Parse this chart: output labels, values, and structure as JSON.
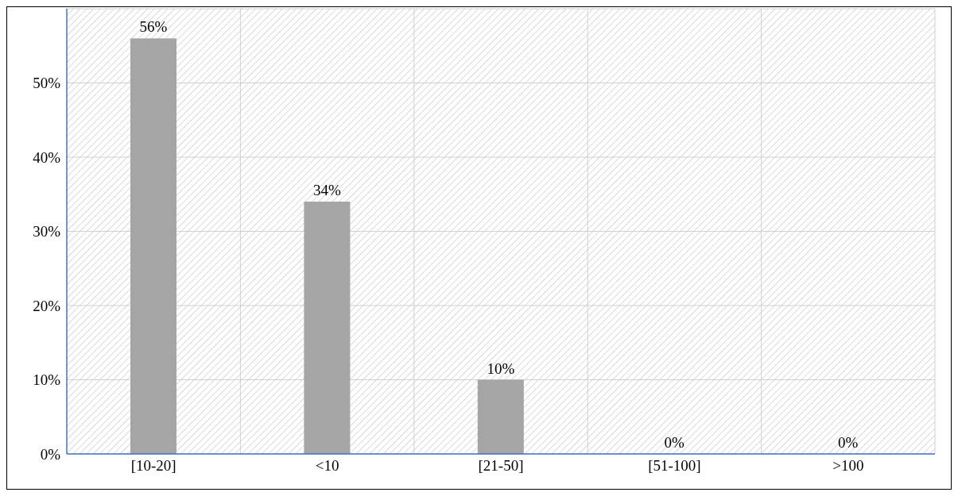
{
  "chart_data": {
    "type": "bar",
    "categories": [
      "[10-20]",
      "<10",
      "[21-50]",
      "[51-100]",
      ">100"
    ],
    "values": [
      56,
      34,
      10,
      0,
      0
    ],
    "value_labels": [
      "56%",
      "34%",
      "10%",
      "0%",
      "0%"
    ],
    "color": "#a5a5a5",
    "ylim": [
      0,
      60
    ],
    "yticks": [
      {
        "value": 0,
        "label": "0%"
      },
      {
        "value": 10,
        "label": "10%"
      },
      {
        "value": 20,
        "label": "20%"
      },
      {
        "value": 30,
        "label": "30%"
      },
      {
        "value": 40,
        "label": "40%"
      },
      {
        "value": 50,
        "label": "50%"
      }
    ],
    "grid": true
  }
}
